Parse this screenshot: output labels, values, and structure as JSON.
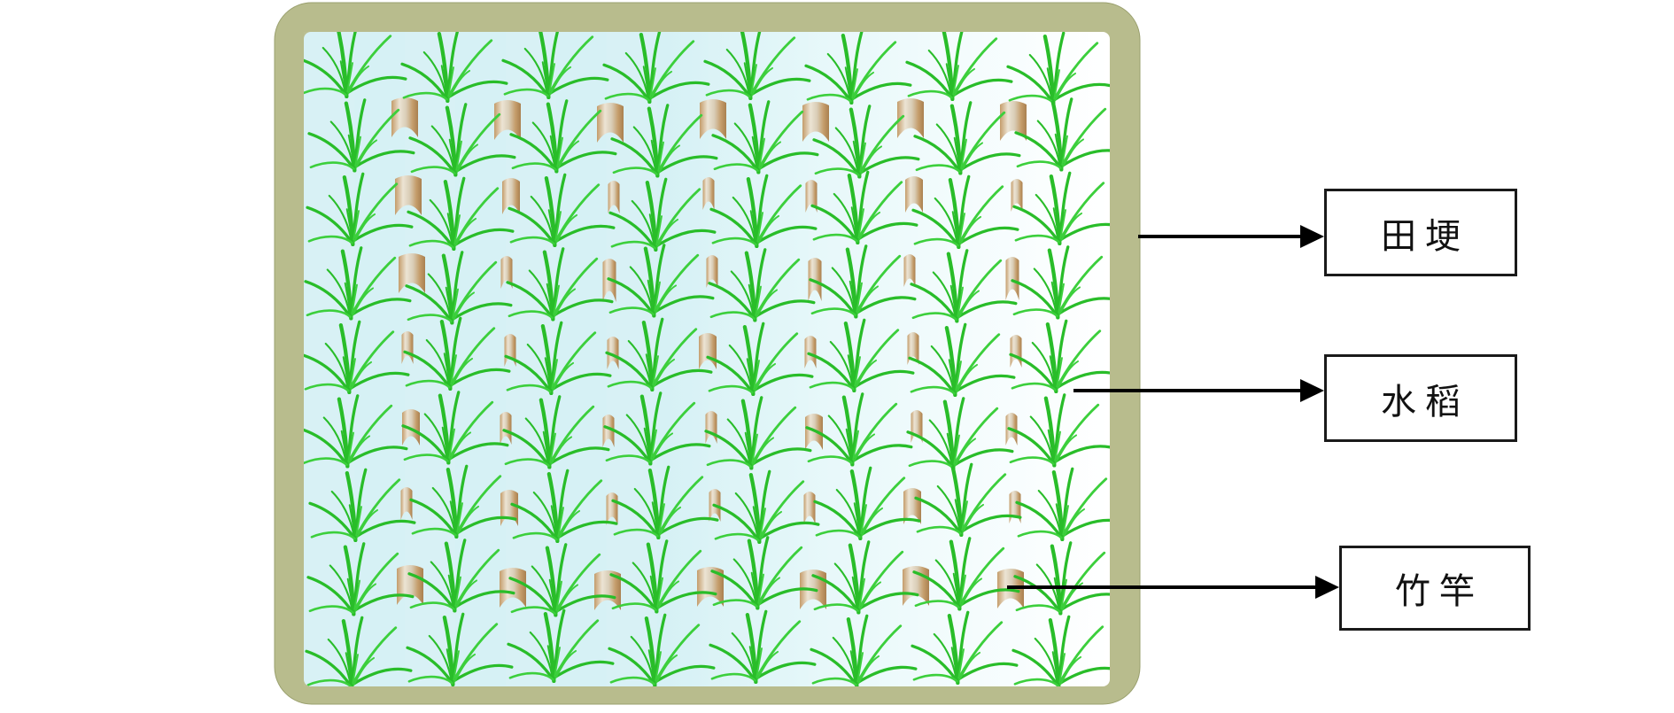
{
  "legend": {
    "items": [
      {
        "id": "field-ridge",
        "label": "田埂"
      },
      {
        "id": "rice",
        "label": "水稻"
      },
      {
        "id": "bamboo-pole",
        "label": "竹竿"
      }
    ]
  },
  "field": {
    "rice_plant_rows": 9,
    "rice_plant_cols": 8,
    "bamboo_pole_rows": 7,
    "bamboo_pole_cols": 7
  },
  "colors": {
    "ridge": "#b8bc8d",
    "ridge_edge": "#9aa06e",
    "water_left": "#d6f1f5",
    "water_mid": "#e4f7f9",
    "water_right": "#ffffff",
    "rice_green": "#29bd29",
    "rice_green_light": "#3ccf3c",
    "pole_dark": "#a98050",
    "pole_mid": "#c49c6a",
    "pole_light": "#ece4d4",
    "arrow": "#000000",
    "box_border": "#1a1a1a",
    "box_background": "#ffffff"
  }
}
